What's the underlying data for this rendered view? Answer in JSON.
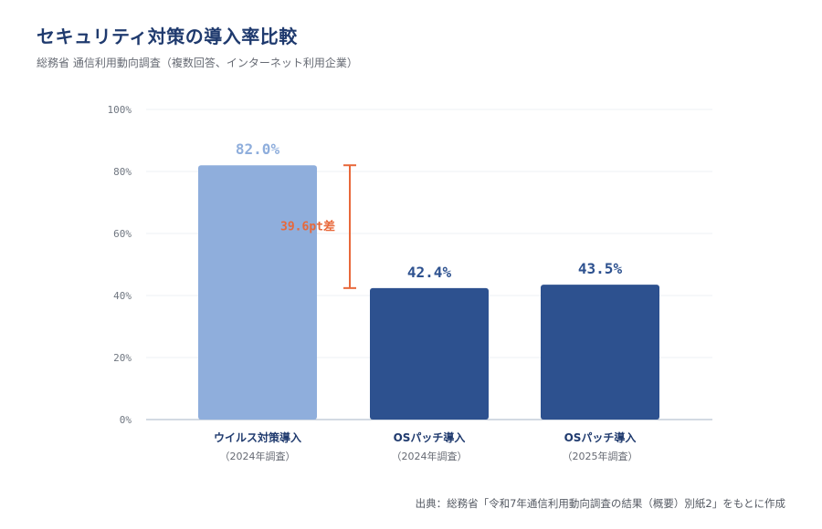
{
  "header": {
    "title": "セキュリティ対策の導入率比較",
    "subtitle": "総務省 通信利用動向調査（複数回答、インターネット利用企業）"
  },
  "footer": {
    "source": "出典：総務省「令和7年通信利用動向調査の結果（概要）別紙2」をもとに作成"
  },
  "chart_data": {
    "type": "bar",
    "title": "セキュリティ対策の導入率比較",
    "subtitle": "総務省 通信利用動向調査（複数回答、インターネット利用企業）",
    "categories": [
      "ウイルス対策導入",
      "OSパッチ導入",
      "OSパッチ導入"
    ],
    "category_sublabels": [
      "（2024年調査）",
      "（2024年調査）",
      "（2025年調査）"
    ],
    "values": [
      82.0,
      42.4,
      43.5
    ],
    "value_labels": [
      "82.0%",
      "42.4%",
      "43.5%"
    ],
    "bar_colors": [
      "#8faedc",
      "#2d518f",
      "#2d518f"
    ],
    "value_label_colors": [
      "#8faedc",
      "#2d518f",
      "#2d518f"
    ],
    "ylim": [
      0,
      100
    ],
    "yticks": [
      0,
      20,
      40,
      60,
      80,
      100
    ],
    "ytick_labels": [
      "0%",
      "20%",
      "40%",
      "60%",
      "80%",
      "100%"
    ],
    "grid": true,
    "annotation": {
      "label": "39.6pt差",
      "from_value": 82.0,
      "to_value": 42.4,
      "color": "#e8683a"
    }
  }
}
